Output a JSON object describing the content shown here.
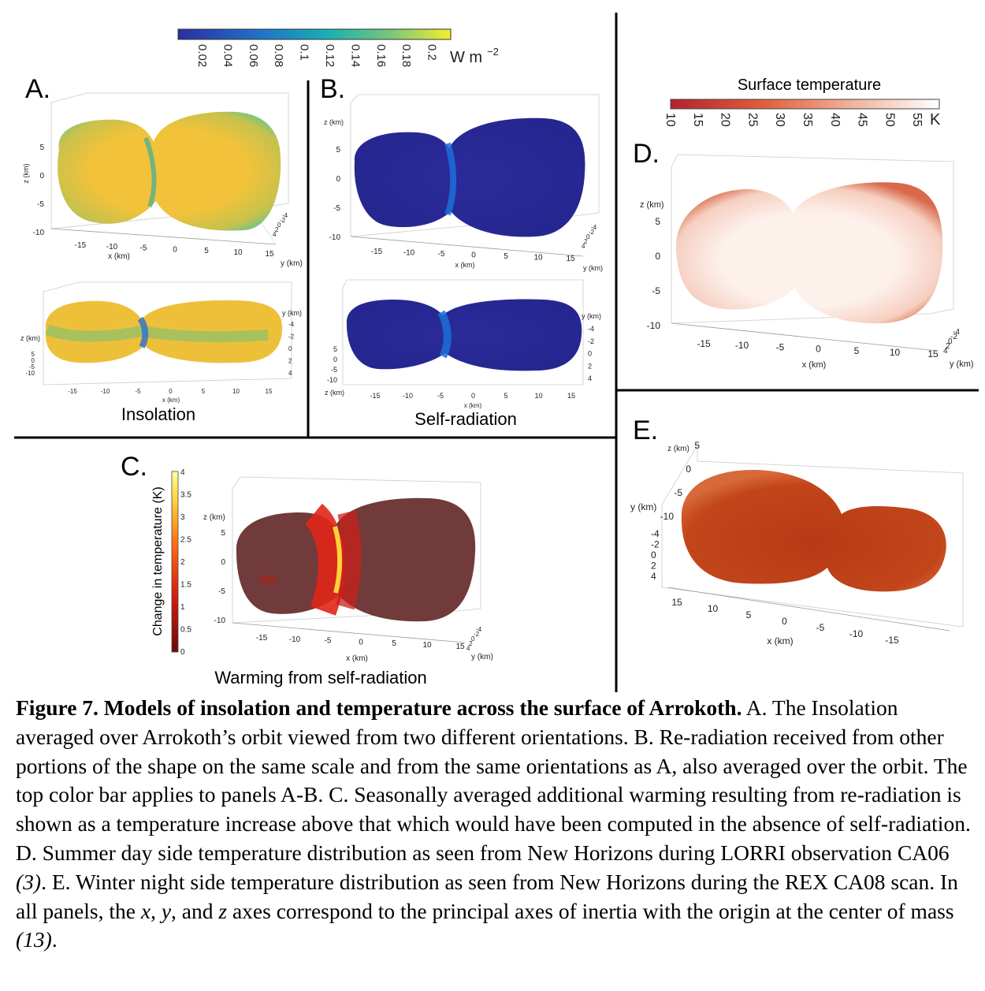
{
  "colorbar_top": {
    "ticks": [
      "0.02",
      "0.04",
      "0.06",
      "0.08",
      "0.1",
      "0.12",
      "0.14",
      "0.16",
      "0.18",
      "0.2"
    ],
    "unit_base": "W m",
    "unit_exp": "−2",
    "colors": [
      "#2c2ea0",
      "#1f72c8",
      "#19b0b2",
      "#78c77a",
      "#f5ee2c"
    ]
  },
  "colorbar_temp": {
    "title": "Surface temperature",
    "ticks": [
      "10",
      "15",
      "20",
      "25",
      "30",
      "35",
      "40",
      "45",
      "50",
      "55"
    ],
    "unit": "K",
    "colors": [
      "#b3212e",
      "#e0603b",
      "#f2b8a2",
      "#ffffff"
    ]
  },
  "colorbar_warm": {
    "label": "Change in temperature (K)",
    "ticks": [
      "0",
      "0.5",
      "1",
      "1.5",
      "2",
      "2.5",
      "3",
      "3.5",
      "4"
    ],
    "colors": [
      "#6a0a0a",
      "#d11a10",
      "#ff6f12",
      "#ffd640",
      "#ffffa0"
    ]
  },
  "panels": {
    "A": {
      "label": "A.",
      "caption": "Insolation"
    },
    "B": {
      "label": "B.",
      "caption": "Self-radiation"
    },
    "C": {
      "label": "C.",
      "caption": "Warming from self-radiation"
    },
    "D": {
      "label": "D."
    },
    "E": {
      "label": "E."
    }
  },
  "axes": {
    "x_label": "x (km)",
    "y_label": "y (km)",
    "z_label": "z (km)",
    "x_ticks": [
      "-15",
      "-10",
      "-5",
      "0",
      "5",
      "10",
      "15"
    ],
    "x_ticks_rev": [
      "15",
      "10",
      "5",
      "0",
      "-5",
      "-10",
      "-15"
    ],
    "z_ticks": [
      "5",
      "0",
      "-5",
      "-10"
    ],
    "y_ticks": [
      "-4",
      "-2",
      "0",
      "2",
      "4"
    ]
  },
  "caption": {
    "title": "Figure 7.  Models of insolation and temperature across the surface of Arrokoth.",
    "p1": "  A. The Insolation averaged over Arrokoth’s orbit viewed from two different orientations.  B. Re-radiation received from other portions of the shape on the same scale and from the same orientations as A, also averaged over the orbit.  The top color bar applies to panels A-B.  C. Seasonally averaged additional warming resulting from re-radiation is shown as a temperature increase above that which would have been computed in the absence of self-radiation.  D. Summer day side temperature distribution as seen from New Horizons during LORRI observation CA06 ",
    "ref1": "(3)",
    "p2": ".  E. Winter night side temperature distribution as seen from New Horizons during the REX CA08 scan.  In all panels, the ",
    "x": "x",
    "sep1": ", ",
    "y": "y",
    "sep2": ", and ",
    "z": "z",
    "p3": " axes correspond to the principal axes of inertia with the origin at the center of mass ",
    "ref2": "(13)",
    "end": "."
  }
}
